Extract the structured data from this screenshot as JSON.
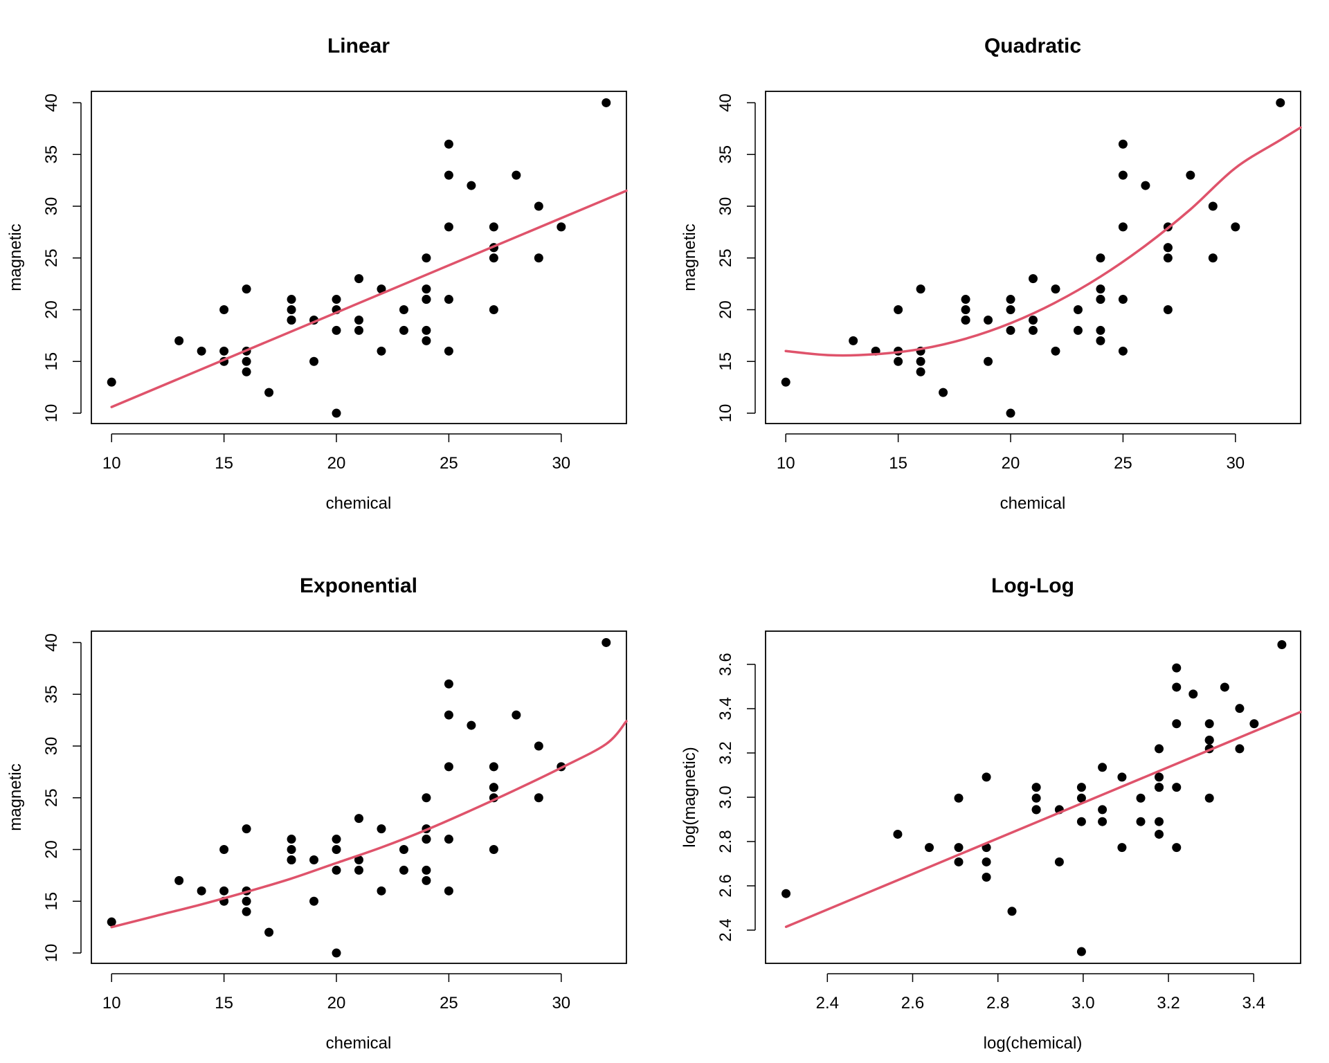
{
  "colors": {
    "points": "#000000",
    "fit_line": "#DF536B"
  },
  "chart_data": [
    {
      "type": "scatter",
      "title": "Linear",
      "xlabel": "chemical",
      "ylabel": "magnetic",
      "xlim": [
        9.1,
        32.9
      ],
      "ylim": [
        9,
        41.1
      ],
      "xticks": [
        10,
        15,
        20,
        25,
        30
      ],
      "yticks": [
        10,
        15,
        20,
        25,
        30,
        35,
        40
      ],
      "points": {
        "x": [
          10,
          13,
          14,
          15,
          15,
          15,
          16,
          16,
          16,
          16,
          17,
          18,
          18,
          18,
          18,
          19,
          19,
          20,
          20,
          20,
          20,
          21,
          21,
          21,
          22,
          22,
          23,
          23,
          24,
          24,
          24,
          24,
          24,
          24,
          25,
          25,
          25,
          25,
          25,
          26,
          27,
          27,
          27,
          27,
          27,
          28,
          29,
          29,
          30,
          32
        ],
        "y": [
          13,
          17,
          16,
          20,
          16,
          15,
          22,
          16,
          15,
          14,
          12,
          21,
          20,
          19,
          19,
          19,
          15,
          21,
          20,
          18,
          10,
          23,
          19,
          18,
          22,
          16,
          20,
          18,
          25,
          22,
          21,
          18,
          17,
          21,
          36,
          33,
          28,
          21,
          16,
          32,
          28,
          26,
          25,
          20,
          26,
          33,
          30,
          25,
          28,
          40
        ]
      },
      "fit": {
        "model": "linear",
        "x": [
          10,
          32.9
        ],
        "y": [
          10.6,
          31.5
        ]
      }
    },
    {
      "type": "scatter",
      "title": "Quadratic",
      "xlabel": "chemical",
      "ylabel": "magnetic",
      "xlim": [
        9.1,
        32.9
      ],
      "ylim": [
        9,
        41.1
      ],
      "xticks": [
        10,
        15,
        20,
        25,
        30
      ],
      "yticks": [
        10,
        15,
        20,
        25,
        30,
        35,
        40
      ],
      "points": {
        "x": [
          10,
          13,
          14,
          15,
          15,
          15,
          16,
          16,
          16,
          16,
          17,
          18,
          18,
          18,
          18,
          19,
          19,
          20,
          20,
          20,
          20,
          21,
          21,
          21,
          22,
          22,
          23,
          23,
          24,
          24,
          24,
          24,
          24,
          24,
          25,
          25,
          25,
          25,
          25,
          26,
          27,
          27,
          27,
          27,
          27,
          28,
          29,
          29,
          30,
          32
        ],
        "y": [
          13,
          17,
          16,
          20,
          16,
          15,
          22,
          16,
          15,
          14,
          12,
          21,
          20,
          19,
          19,
          19,
          15,
          21,
          20,
          18,
          10,
          23,
          19,
          18,
          22,
          16,
          20,
          18,
          25,
          22,
          21,
          18,
          17,
          21,
          36,
          33,
          28,
          21,
          16,
          32,
          28,
          26,
          25,
          20,
          26,
          33,
          30,
          25,
          28,
          40
        ]
      },
      "fit": {
        "model": "quadratic",
        "x": [
          10,
          12,
          14,
          16,
          18,
          20,
          22,
          24,
          26,
          28,
          30,
          32,
          32.9
        ],
        "y": [
          16.0,
          15.6,
          15.7,
          16.2,
          17.2,
          18.7,
          20.7,
          23.2,
          26.2,
          29.7,
          33.7,
          36.4,
          37.6
        ]
      }
    },
    {
      "type": "scatter",
      "title": "Exponential",
      "xlabel": "chemical",
      "ylabel": "magnetic",
      "xlim": [
        9.1,
        32.9
      ],
      "ylim": [
        9,
        41.1
      ],
      "xticks": [
        10,
        15,
        20,
        25,
        30
      ],
      "yticks": [
        10,
        15,
        20,
        25,
        30,
        35,
        40
      ],
      "points": {
        "x": [
          10,
          13,
          14,
          15,
          15,
          15,
          16,
          16,
          16,
          16,
          17,
          18,
          18,
          18,
          18,
          19,
          19,
          20,
          20,
          20,
          20,
          21,
          21,
          21,
          22,
          22,
          23,
          23,
          24,
          24,
          24,
          24,
          24,
          24,
          25,
          25,
          25,
          25,
          25,
          26,
          27,
          27,
          27,
          27,
          27,
          28,
          29,
          29,
          30,
          32
        ],
        "y": [
          13,
          17,
          16,
          20,
          16,
          15,
          22,
          16,
          15,
          14,
          12,
          21,
          20,
          19,
          19,
          19,
          15,
          21,
          20,
          18,
          10,
          23,
          19,
          18,
          22,
          16,
          20,
          18,
          25,
          22,
          21,
          18,
          17,
          21,
          36,
          33,
          28,
          21,
          16,
          32,
          28,
          26,
          25,
          20,
          26,
          33,
          30,
          25,
          28,
          40
        ]
      },
      "fit": {
        "model": "exponential",
        "x": [
          10,
          12,
          14,
          16,
          18,
          20,
          22,
          24,
          26,
          28,
          30,
          32,
          32.9
        ],
        "y": [
          12.5,
          13.6,
          14.7,
          15.9,
          17.2,
          18.7,
          20.2,
          21.9,
          23.8,
          25.8,
          27.9,
          30.2,
          32.4
        ]
      }
    },
    {
      "type": "scatter",
      "title": "Log-Log",
      "xlabel": "log(chemical)",
      "ylabel": "log(magnetic)",
      "xlim": [
        2.255,
        3.51
      ],
      "ylim": [
        2.25,
        3.75
      ],
      "xticks": [
        2.4,
        2.6,
        2.8,
        3.0,
        3.2,
        3.4
      ],
      "xtick_labels": [
        "2.4",
        "2.6",
        "2.8",
        "3.0",
        "3.2",
        "3.4"
      ],
      "yticks": [
        2.4,
        2.6,
        2.8,
        3.0,
        3.2,
        3.4,
        3.6
      ],
      "ytick_labels": [
        "2.4",
        "2.6",
        "2.8",
        "3.0",
        "3.2",
        "3.4",
        "3.6"
      ],
      "points": {
        "x": [
          2.303,
          2.565,
          2.639,
          2.708,
          2.708,
          2.708,
          2.773,
          2.773,
          2.773,
          2.773,
          2.833,
          2.89,
          2.89,
          2.89,
          2.89,
          2.944,
          2.944,
          2.996,
          2.996,
          2.996,
          2.996,
          3.045,
          3.045,
          3.045,
          3.091,
          3.091,
          3.135,
          3.135,
          3.178,
          3.178,
          3.178,
          3.178,
          3.178,
          3.178,
          3.219,
          3.219,
          3.219,
          3.219,
          3.219,
          3.258,
          3.296,
          3.296,
          3.296,
          3.296,
          3.296,
          3.332,
          3.367,
          3.367,
          3.401,
          3.466
        ],
        "y": [
          2.565,
          2.833,
          2.773,
          2.996,
          2.773,
          2.708,
          3.091,
          2.773,
          2.708,
          2.639,
          2.485,
          3.045,
          2.996,
          2.944,
          2.944,
          2.944,
          2.708,
          3.045,
          2.996,
          2.89,
          2.303,
          3.135,
          2.944,
          2.89,
          3.091,
          2.773,
          2.996,
          2.89,
          3.219,
          3.091,
          3.045,
          2.89,
          2.833,
          3.045,
          3.584,
          3.497,
          3.332,
          3.045,
          2.773,
          3.466,
          3.332,
          3.258,
          3.219,
          2.996,
          3.258,
          3.497,
          3.401,
          3.219,
          3.332,
          3.689
        ]
      },
      "fit": {
        "model": "linear",
        "x": [
          2.303,
          3.51
        ],
        "y": [
          2.415,
          3.385
        ]
      }
    }
  ]
}
